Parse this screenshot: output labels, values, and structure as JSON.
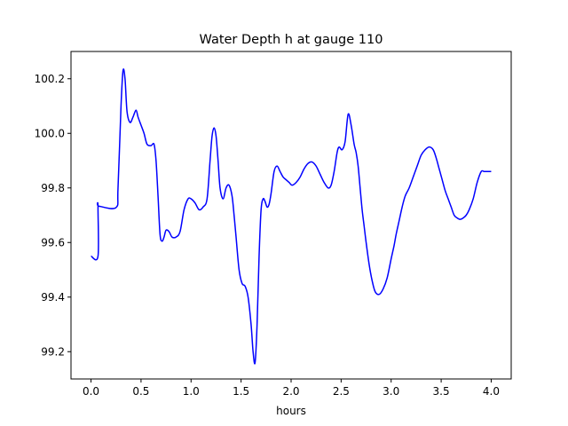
{
  "chart_data": {
    "type": "line",
    "title": "Water Depth h at gauge 110",
    "xlabel": "hours",
    "ylabel": "",
    "xlim": [
      -0.2,
      4.2
    ],
    "ylim": [
      99.1,
      100.3
    ],
    "xticks": [
      0.0,
      0.5,
      1.0,
      1.5,
      2.0,
      2.5,
      3.0,
      3.5,
      4.0
    ],
    "xtick_labels": [
      "0.0",
      "0.5",
      "1.0",
      "1.5",
      "2.0",
      "2.5",
      "3.0",
      "3.5",
      "4.0"
    ],
    "yticks": [
      99.2,
      99.4,
      99.6,
      99.8,
      100.0,
      100.2
    ],
    "ytick_labels": [
      "99.2",
      "99.4",
      "99.6",
      "99.8",
      "100.0",
      "100.2"
    ],
    "grid": false,
    "colors": {
      "line": "#0000ff"
    },
    "series": [
      {
        "x": [
          0.0,
          0.07,
          0.07,
          0.08,
          0.25,
          0.27,
          0.3,
          0.32,
          0.34,
          0.36,
          0.39,
          0.42,
          0.45,
          0.47,
          0.5,
          0.53,
          0.56,
          0.6,
          0.63,
          0.65,
          0.67,
          0.69,
          0.71,
          0.73,
          0.75,
          0.78,
          0.81,
          0.85,
          0.89,
          0.93,
          0.97,
          1.0,
          1.04,
          1.08,
          1.12,
          1.16,
          1.19,
          1.21,
          1.23,
          1.25,
          1.27,
          1.29,
          1.32,
          1.35,
          1.38,
          1.41,
          1.43,
          1.45,
          1.48,
          1.51,
          1.54,
          1.57,
          1.6,
          1.62,
          1.64,
          1.66,
          1.68,
          1.7,
          1.72,
          1.74,
          1.76,
          1.78,
          1.8,
          1.83,
          1.86,
          1.89,
          1.92,
          1.95,
          1.98,
          2.01,
          2.05,
          2.09,
          2.13,
          2.17,
          2.21,
          2.25,
          2.29,
          2.33,
          2.37,
          2.4,
          2.43,
          2.46,
          2.48,
          2.51,
          2.54,
          2.57,
          2.6,
          2.63,
          2.65,
          2.67,
          2.69,
          2.71,
          2.73,
          2.75,
          2.78,
          2.81,
          2.84,
          2.88,
          2.92,
          2.96,
          3.0,
          3.03,
          3.05,
          3.08,
          3.11,
          3.14,
          3.18,
          3.22,
          3.26,
          3.3,
          3.34,
          3.38,
          3.42,
          3.45,
          3.48,
          3.51,
          3.54,
          3.57,
          3.6,
          3.63,
          3.66,
          3.69,
          3.72,
          3.75,
          3.78,
          3.82,
          3.86,
          3.9,
          3.93,
          3.96,
          4.0
        ],
        "y": [
          99.55,
          99.55,
          99.732,
          99.733,
          99.728,
          99.8,
          100.1,
          100.23,
          100.2,
          100.08,
          100.04,
          100.06,
          100.085,
          100.06,
          100.03,
          100.0,
          99.96,
          99.955,
          99.96,
          99.9,
          99.77,
          99.63,
          99.605,
          99.62,
          99.645,
          99.64,
          99.62,
          99.62,
          99.64,
          99.72,
          99.76,
          99.76,
          99.745,
          99.72,
          99.73,
          99.76,
          99.9,
          99.99,
          100.02,
          99.99,
          99.9,
          99.8,
          99.76,
          99.8,
          99.81,
          99.77,
          99.7,
          99.62,
          99.5,
          99.45,
          99.44,
          99.4,
          99.3,
          99.2,
          99.16,
          99.3,
          99.55,
          99.72,
          99.76,
          99.75,
          99.73,
          99.74,
          99.78,
          99.86,
          99.88,
          99.86,
          99.84,
          99.83,
          99.82,
          99.81,
          99.82,
          99.84,
          99.87,
          99.89,
          99.895,
          99.88,
          99.85,
          99.82,
          99.8,
          99.81,
          99.86,
          99.93,
          99.95,
          99.94,
          99.97,
          100.07,
          100.03,
          99.96,
          99.93,
          99.88,
          99.8,
          99.72,
          99.66,
          99.6,
          99.52,
          99.46,
          99.42,
          99.41,
          99.43,
          99.47,
          99.54,
          99.59,
          99.63,
          99.68,
          99.73,
          99.77,
          99.8,
          99.84,
          99.88,
          99.92,
          99.94,
          99.95,
          99.94,
          99.91,
          99.87,
          99.83,
          99.79,
          99.76,
          99.73,
          99.7,
          99.69,
          99.685,
          99.69,
          99.7,
          99.72,
          99.76,
          99.82,
          99.86,
          99.86,
          99.86,
          99.86
        ]
      }
    ]
  }
}
